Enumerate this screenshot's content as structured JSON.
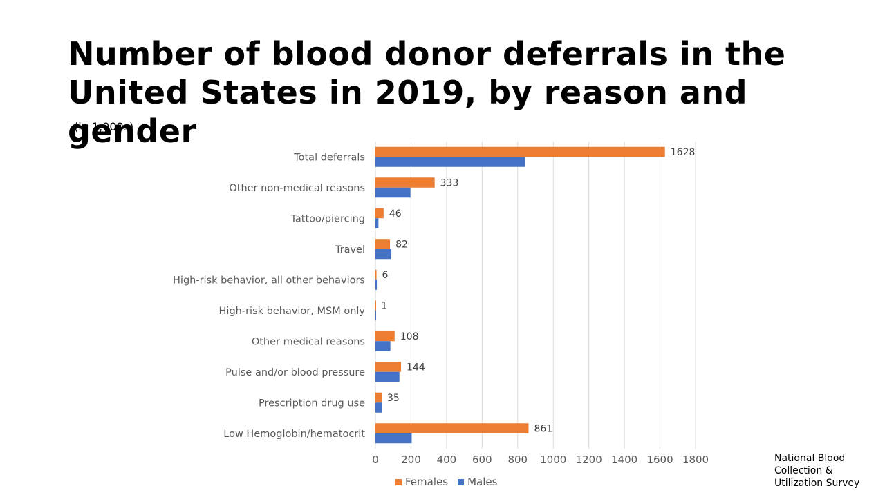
{
  "title": "Number of blood donor deferrals in the United States in 2019, by reason and gender",
  "subtitle": "(in 1,000s)",
  "source": "National Blood Collection & Utilization Survey",
  "colors": {
    "females": "#ED7D31",
    "males": "#4472C4",
    "grid": "#D9D9D9",
    "axis_text": "#595959"
  },
  "chart_data": {
    "type": "bar",
    "orientation": "horizontal",
    "categories": [
      "Total deferrals",
      "Other non-medical reasons",
      "Tattoo/piercing",
      "Travel",
      "High-risk behavior, all other behaviors",
      "High-risk behavior, MSM only",
      "Other medical reasons",
      "Pulse and/or blood pressure",
      "Prescription drug use",
      "Low Hemoglobin/hematocrit"
    ],
    "series": [
      {
        "name": "Females",
        "values": [
          1628,
          333,
          46,
          82,
          6,
          1,
          108,
          144,
          35,
          861
        ],
        "data_labels": true
      },
      {
        "name": "Males",
        "values": [
          843,
          197,
          17,
          88,
          8,
          3,
          84,
          135,
          35,
          204
        ],
        "data_labels": false
      }
    ],
    "xlim": [
      0,
      1800
    ],
    "xticks": [
      0,
      200,
      400,
      600,
      800,
      1000,
      1200,
      1400,
      1600,
      1800
    ],
    "grid": true,
    "legend": "bottom"
  }
}
